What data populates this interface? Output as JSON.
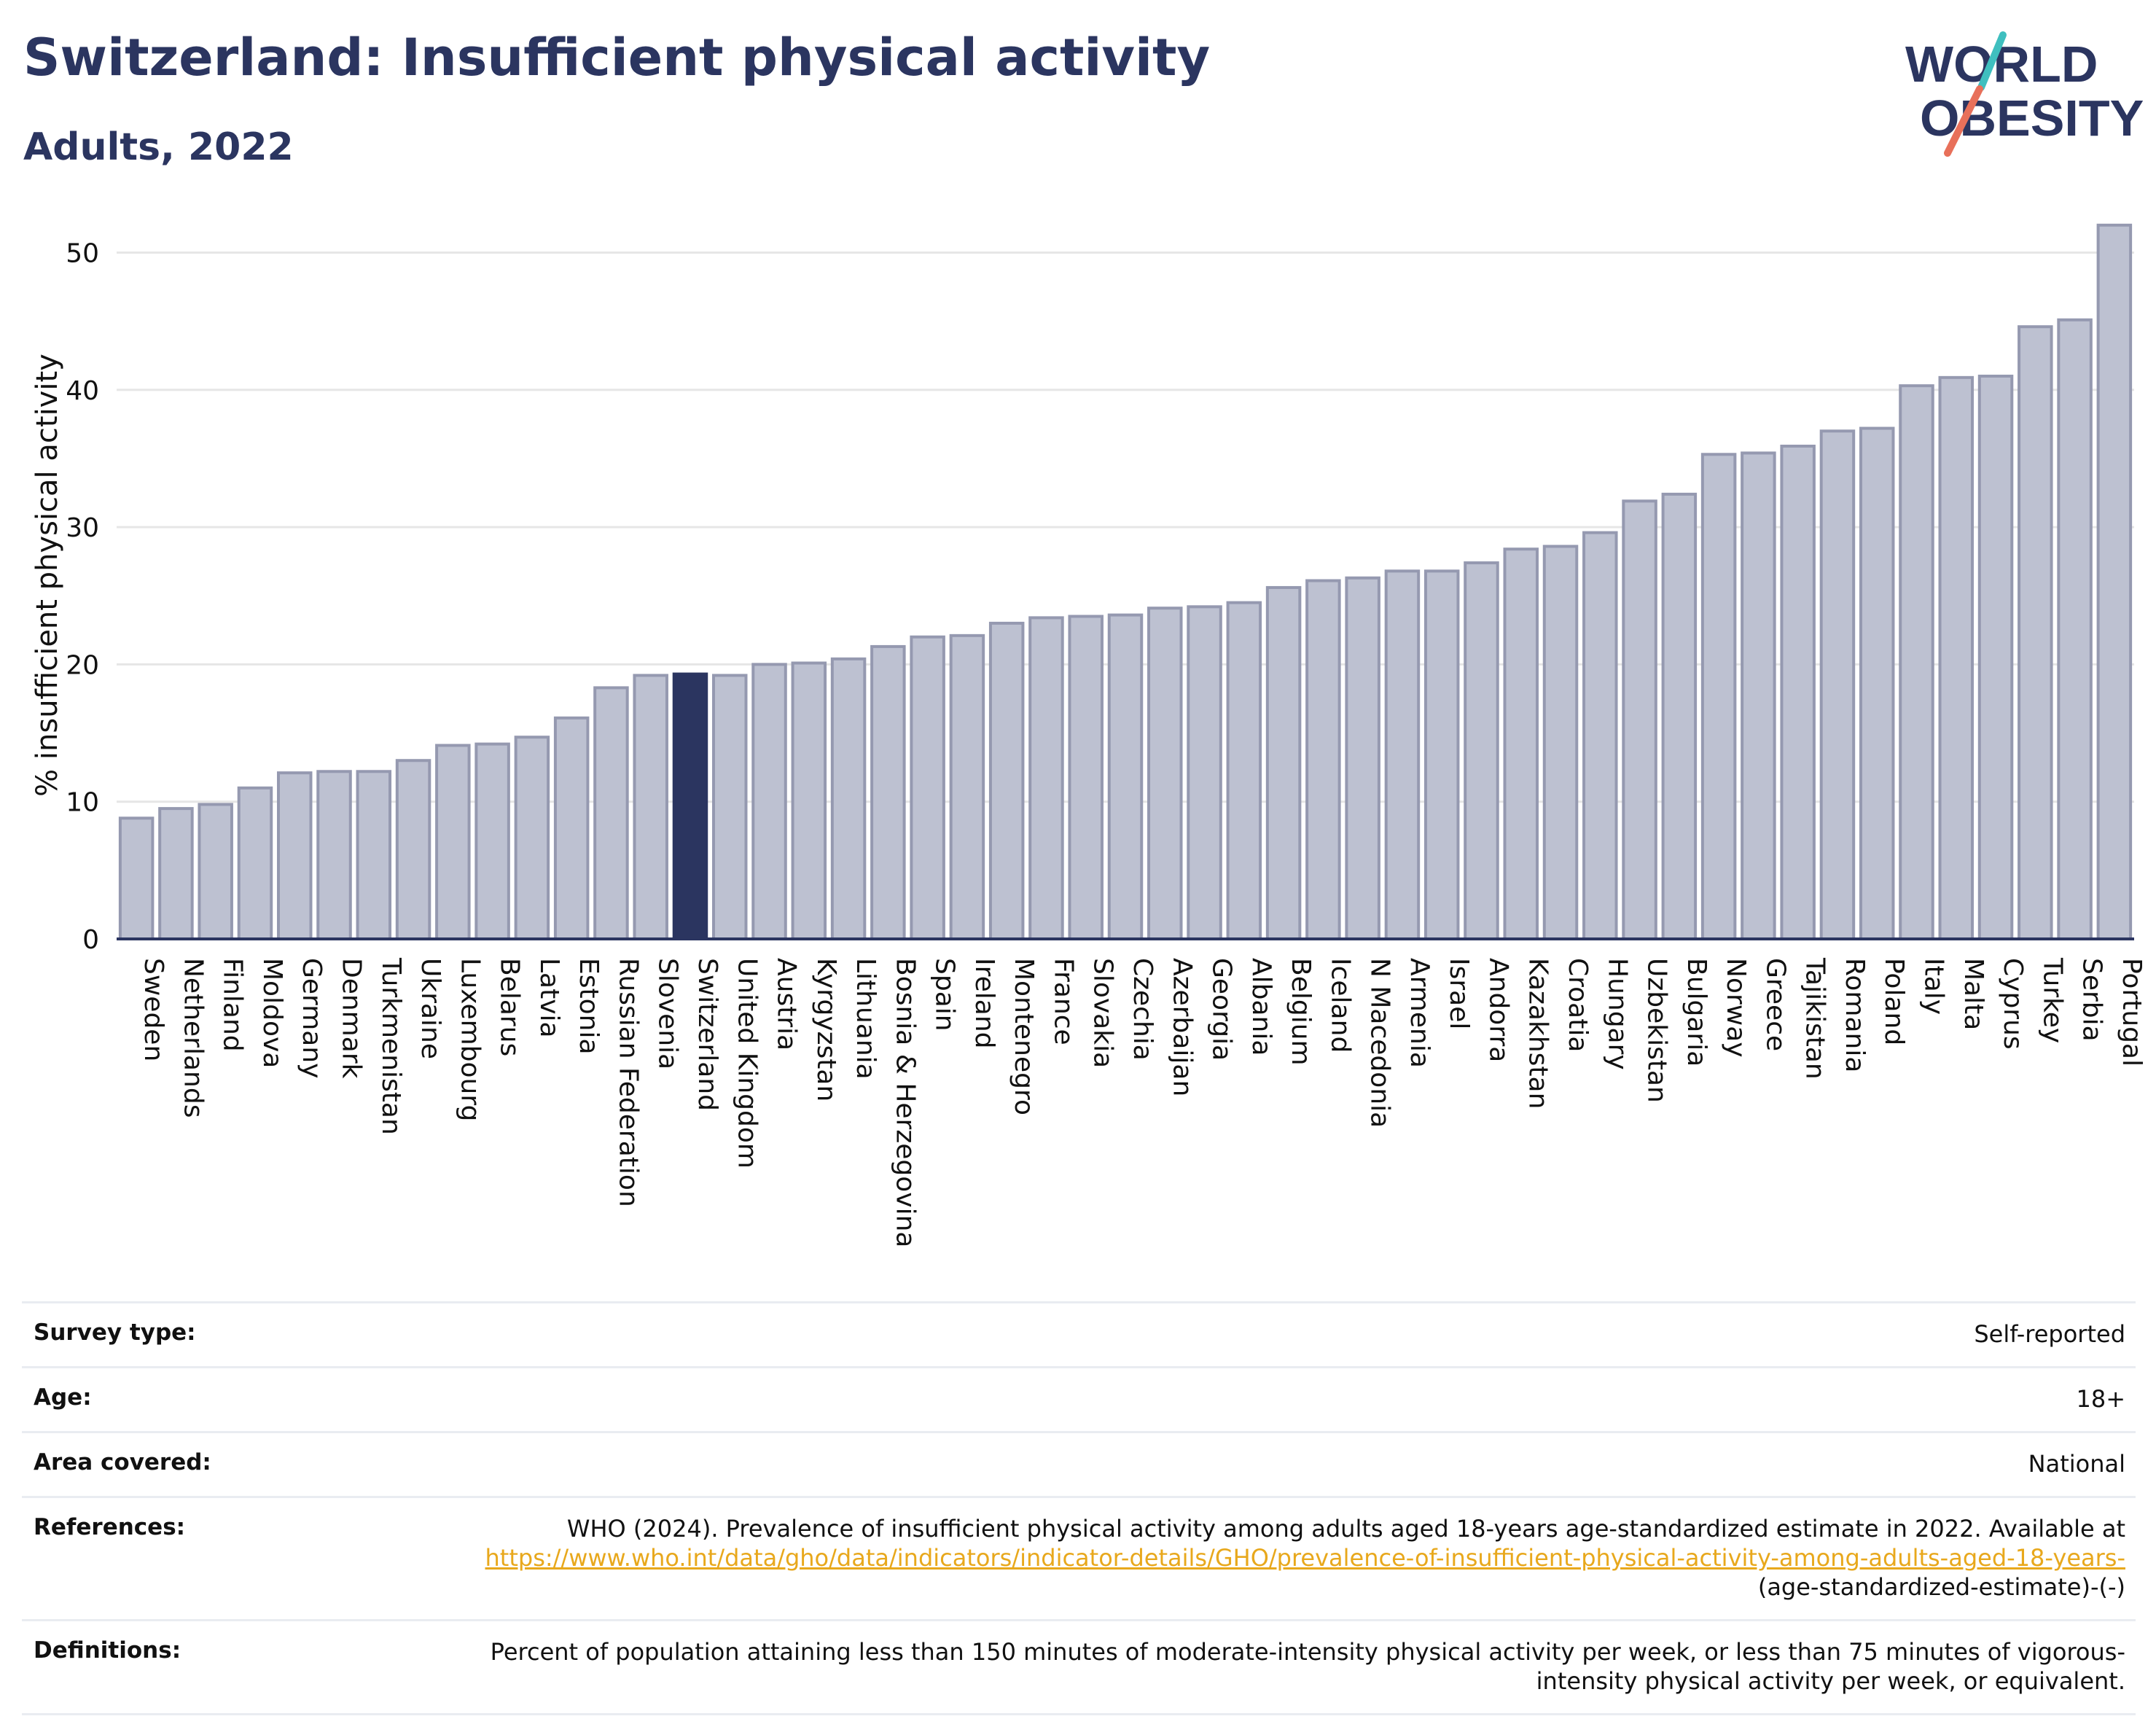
{
  "header": {
    "title": "Switzerland: Insufficient physical activity",
    "subtitle": "Adults, 2022"
  },
  "logo": {
    "line1": "WORLD",
    "line2": "OBESITY",
    "colors": {
      "text": "#2b3560",
      "slash_teal": "#3fbfbf",
      "slash_coral": "#e8705a"
    }
  },
  "colors": {
    "bar": "#bdc1d1",
    "bar_stroke": "#9599b0",
    "highlight": "#2b3560",
    "grid": "#e6e6e6",
    "axis": "#2b3560"
  },
  "chart_data": {
    "type": "bar",
    "title": "Switzerland: Insufficient physical activity",
    "subtitle": "Adults, 2022",
    "xlabel": "",
    "ylabel": "% insufficient physical activity",
    "ylim": [
      0,
      53
    ],
    "yticks": [
      0,
      10,
      20,
      30,
      40,
      50
    ],
    "grid": true,
    "highlight": "Switzerland",
    "categories": [
      "Sweden",
      "Netherlands",
      "Finland",
      "Moldova",
      "Germany",
      "Denmark",
      "Turkmenistan",
      "Ukraine",
      "Luxembourg",
      "Belarus",
      "Latvia",
      "Estonia",
      "Russian Federation",
      "Slovenia",
      "Switzerland",
      "United Kingdom",
      "Austria",
      "Kyrgyzstan",
      "Lithuania",
      "Bosnia & Herzegovina",
      "Spain",
      "Ireland",
      "Montenegro",
      "France",
      "Slovakia",
      "Czechia",
      "Azerbaijan",
      "Georgia",
      "Albania",
      "Belgium",
      "Iceland",
      "N Macedonia",
      "Armenia",
      "Israel",
      "Andorra",
      "Kazakhstan",
      "Croatia",
      "Hungary",
      "Uzbekistan",
      "Bulgaria",
      "Norway",
      "Greece",
      "Tajikistan",
      "Romania",
      "Poland",
      "Italy",
      "Malta",
      "Cyprus",
      "Turkey",
      "Serbia",
      "Portugal"
    ],
    "values": [
      8.8,
      9.5,
      9.8,
      11.0,
      12.1,
      12.2,
      12.2,
      13.0,
      14.1,
      14.2,
      14.7,
      16.1,
      18.3,
      19.2,
      19.3,
      19.2,
      20.0,
      20.1,
      20.4,
      21.3,
      22.0,
      22.1,
      23.0,
      23.4,
      23.5,
      23.6,
      24.1,
      24.2,
      24.5,
      25.6,
      26.1,
      26.3,
      26.8,
      26.8,
      27.4,
      28.4,
      28.6,
      29.6,
      31.9,
      32.4,
      35.3,
      35.4,
      35.9,
      37.0,
      37.2,
      40.3,
      40.9,
      41.0,
      44.6,
      45.1,
      52.0
    ]
  },
  "info": [
    {
      "label": "Survey type:",
      "value": "Self-reported"
    },
    {
      "label": "Age:",
      "value": "18+"
    },
    {
      "label": "Area covered:",
      "value": "National"
    },
    {
      "label": "References:",
      "value_pre": "WHO (2024). Prevalence of insufficient physical activity among adults aged 18-years age-standardized estimate in 2022. Available at ",
      "link": "https://www.who.int/data/gho/data/indicators/indicator-details/GHO/prevalence-of-insufficient-physical-activity-among-adults-aged-18-years-",
      "value_post": "(age-standardized-estimate)-(-)"
    },
    {
      "label": "Definitions:",
      "value": "Percent of population attaining less than 150 minutes of moderate-intensity physical activity per week, or less than 75 minutes of vigorous-intensity physical activity per week, or equivalent."
    }
  ]
}
